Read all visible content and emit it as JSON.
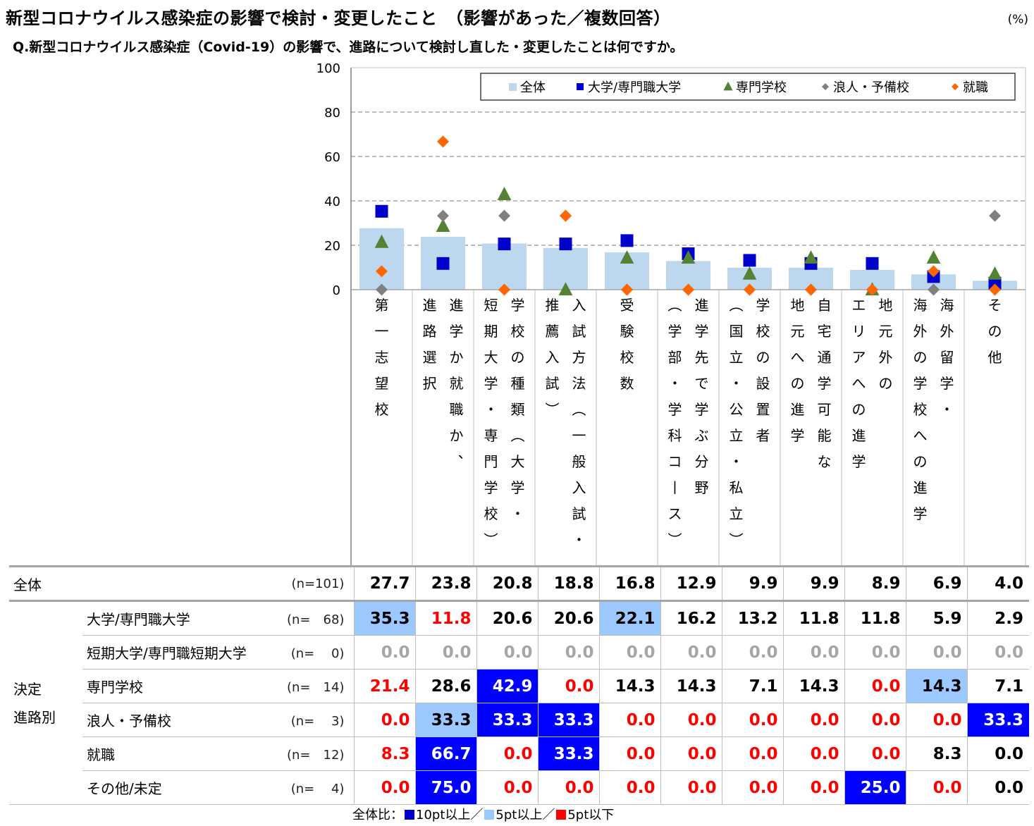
{
  "title": "新型コロナウイルス感染症の影響で検討・変更したこと　（影響があった／複数回答）",
  "unit": "(%)",
  "question": "Q.新型コロナウイルス感染症（Covid-19）の影響で、進路について検討し直した・変更したことは何ですか。",
  "colors": {
    "overall_bar": "#bdd7ee",
    "univ": "#0000cc",
    "senmon": "#548235",
    "ronin": "#808080",
    "shushoku": "#ff6600",
    "highlight_dark": "#0000ff",
    "highlight_light": "#9bc9ff",
    "negative_text": "#ff0000"
  },
  "chart_data": {
    "type": "bar",
    "ylim": [
      0,
      100
    ],
    "yticks": [
      "0",
      "20",
      "40",
      "60",
      "80",
      "100"
    ],
    "grid": true,
    "legend_position": "top-right",
    "categories": [
      "第一志望校",
      "進学か就職か、進路選択",
      "学校の種類（大学・短期大学・専門学校）",
      "入試方法（一般入試・推薦入試）",
      "受験校数",
      "進学先で学ぶ分野（学部・学科コース）",
      "学校の設置者（国立・公立・私立）",
      "自宅通学可能な地元への進学",
      "地元外のエリアへの進学",
      "海外留学・海外の学校への進学",
      "その他"
    ],
    "category_lines": [
      [
        "第一志望校"
      ],
      [
        "進学か就職か、",
        "進路選択"
      ],
      [
        "学校の種類（大学・",
        "短期大学・専門学校）"
      ],
      [
        "入試方法（一般入試・",
        "推薦入試）"
      ],
      [
        "受験校数"
      ],
      [
        "進学先で学ぶ分野",
        "（学部・学科コース）"
      ],
      [
        "学校の設置者",
        "（国立・公立・私立）"
      ],
      [
        "自宅通学可能な",
        "地元への進学"
      ],
      [
        "地元外の",
        "エリアへの進学"
      ],
      [
        "海外留学・",
        "海外の学校への進学"
      ],
      [
        "その他"
      ]
    ],
    "series": [
      {
        "name": "全体",
        "marker": "bar",
        "color": "#bdd7ee",
        "values": [
          27.7,
          23.8,
          20.8,
          18.8,
          16.8,
          12.9,
          9.9,
          9.9,
          8.9,
          6.9,
          4.0
        ]
      },
      {
        "name": "大学/専門職大学",
        "marker": "square",
        "color": "#0000cc",
        "values": [
          35.3,
          11.8,
          20.6,
          20.6,
          22.1,
          16.2,
          13.2,
          11.8,
          11.8,
          5.9,
          2.9
        ]
      },
      {
        "name": "専門学校",
        "marker": "triangle",
        "color": "#548235",
        "values": [
          21.4,
          28.6,
          42.9,
          0.0,
          14.3,
          14.3,
          7.1,
          14.3,
          0.0,
          14.3,
          7.1
        ]
      },
      {
        "name": "浪人・予備校",
        "marker": "diamond",
        "color": "#808080",
        "values": [
          0.0,
          33.3,
          33.3,
          33.3,
          0.0,
          0.0,
          0.0,
          0.0,
          0.0,
          0.0,
          33.3
        ]
      },
      {
        "name": "就職",
        "marker": "diamond",
        "color": "#ff6600",
        "values": [
          8.3,
          66.7,
          0.0,
          33.3,
          0.0,
          0.0,
          0.0,
          0.0,
          0.0,
          8.3,
          0.0
        ]
      }
    ]
  },
  "table": {
    "group_label": "決定\n進路別",
    "total_row": {
      "label": "全体",
      "n": "(n=101)",
      "values": [
        "27.7",
        "23.8",
        "20.8",
        "18.8",
        "16.8",
        "12.9",
        "9.9",
        "9.9",
        "8.9",
        "6.9",
        "4.0"
      ]
    },
    "rows": [
      {
        "label": "大学/専門職大学",
        "n": "(n=　68)",
        "values": [
          "35.3",
          "11.8",
          "20.6",
          "20.6",
          "22.1",
          "16.2",
          "13.2",
          "11.8",
          "11.8",
          "5.9",
          "2.9"
        ],
        "styles": [
          "light",
          "red",
          "",
          "",
          "light",
          "",
          "",
          "",
          "",
          "",
          ""
        ]
      },
      {
        "label": "短期大学/専門職短期大学",
        "n": "(n=　 0)",
        "values": [
          "0.0",
          "0.0",
          "0.0",
          "0.0",
          "0.0",
          "0.0",
          "0.0",
          "0.0",
          "0.0",
          "0.0",
          "0.0"
        ],
        "styles": [
          "grey",
          "grey",
          "grey",
          "grey",
          "grey",
          "grey",
          "grey",
          "grey",
          "grey",
          "grey",
          "grey"
        ]
      },
      {
        "label": "専門学校",
        "n": "(n=　14)",
        "values": [
          "21.4",
          "28.6",
          "42.9",
          "0.0",
          "14.3",
          "14.3",
          "7.1",
          "14.3",
          "0.0",
          "14.3",
          "7.1"
        ],
        "styles": [
          "red",
          "",
          "dark",
          "red",
          "",
          "",
          "",
          "",
          "red",
          "light",
          ""
        ]
      },
      {
        "label": "浪人・予備校",
        "n": "(n=　 3)",
        "values": [
          "0.0",
          "33.3",
          "33.3",
          "33.3",
          "0.0",
          "0.0",
          "0.0",
          "0.0",
          "0.0",
          "0.0",
          "33.3"
        ],
        "styles": [
          "red",
          "light",
          "dark",
          "dark",
          "red",
          "red",
          "red",
          "red",
          "red",
          "red",
          "dark"
        ]
      },
      {
        "label": "就職",
        "n": "(n=　12)",
        "values": [
          "8.3",
          "66.7",
          "0.0",
          "33.3",
          "0.0",
          "0.0",
          "0.0",
          "0.0",
          "0.0",
          "8.3",
          "0.0"
        ],
        "styles": [
          "red",
          "dark",
          "red",
          "dark",
          "red",
          "red",
          "red",
          "red",
          "red",
          "",
          ""
        ]
      },
      {
        "label": "その他/未定",
        "n": "(n=　 4)",
        "values": [
          "0.0",
          "75.0",
          "0.0",
          "0.0",
          "0.0",
          "0.0",
          "0.0",
          "0.0",
          "25.0",
          "0.0",
          "0.0"
        ],
        "styles": [
          "red",
          "dark",
          "red",
          "red",
          "red",
          "red",
          "red",
          "red",
          "dark",
          "red",
          ""
        ]
      }
    ]
  },
  "footnote": {
    "prefix": "全体比：",
    "items": [
      {
        "color": "#0000cc",
        "text": "10pt以上"
      },
      {
        "sep": "／"
      },
      {
        "color": "#9bc9ff",
        "text": "5pt以上"
      },
      {
        "sep": "／"
      },
      {
        "color": "#ff0000",
        "text": "5pt以下"
      }
    ]
  }
}
